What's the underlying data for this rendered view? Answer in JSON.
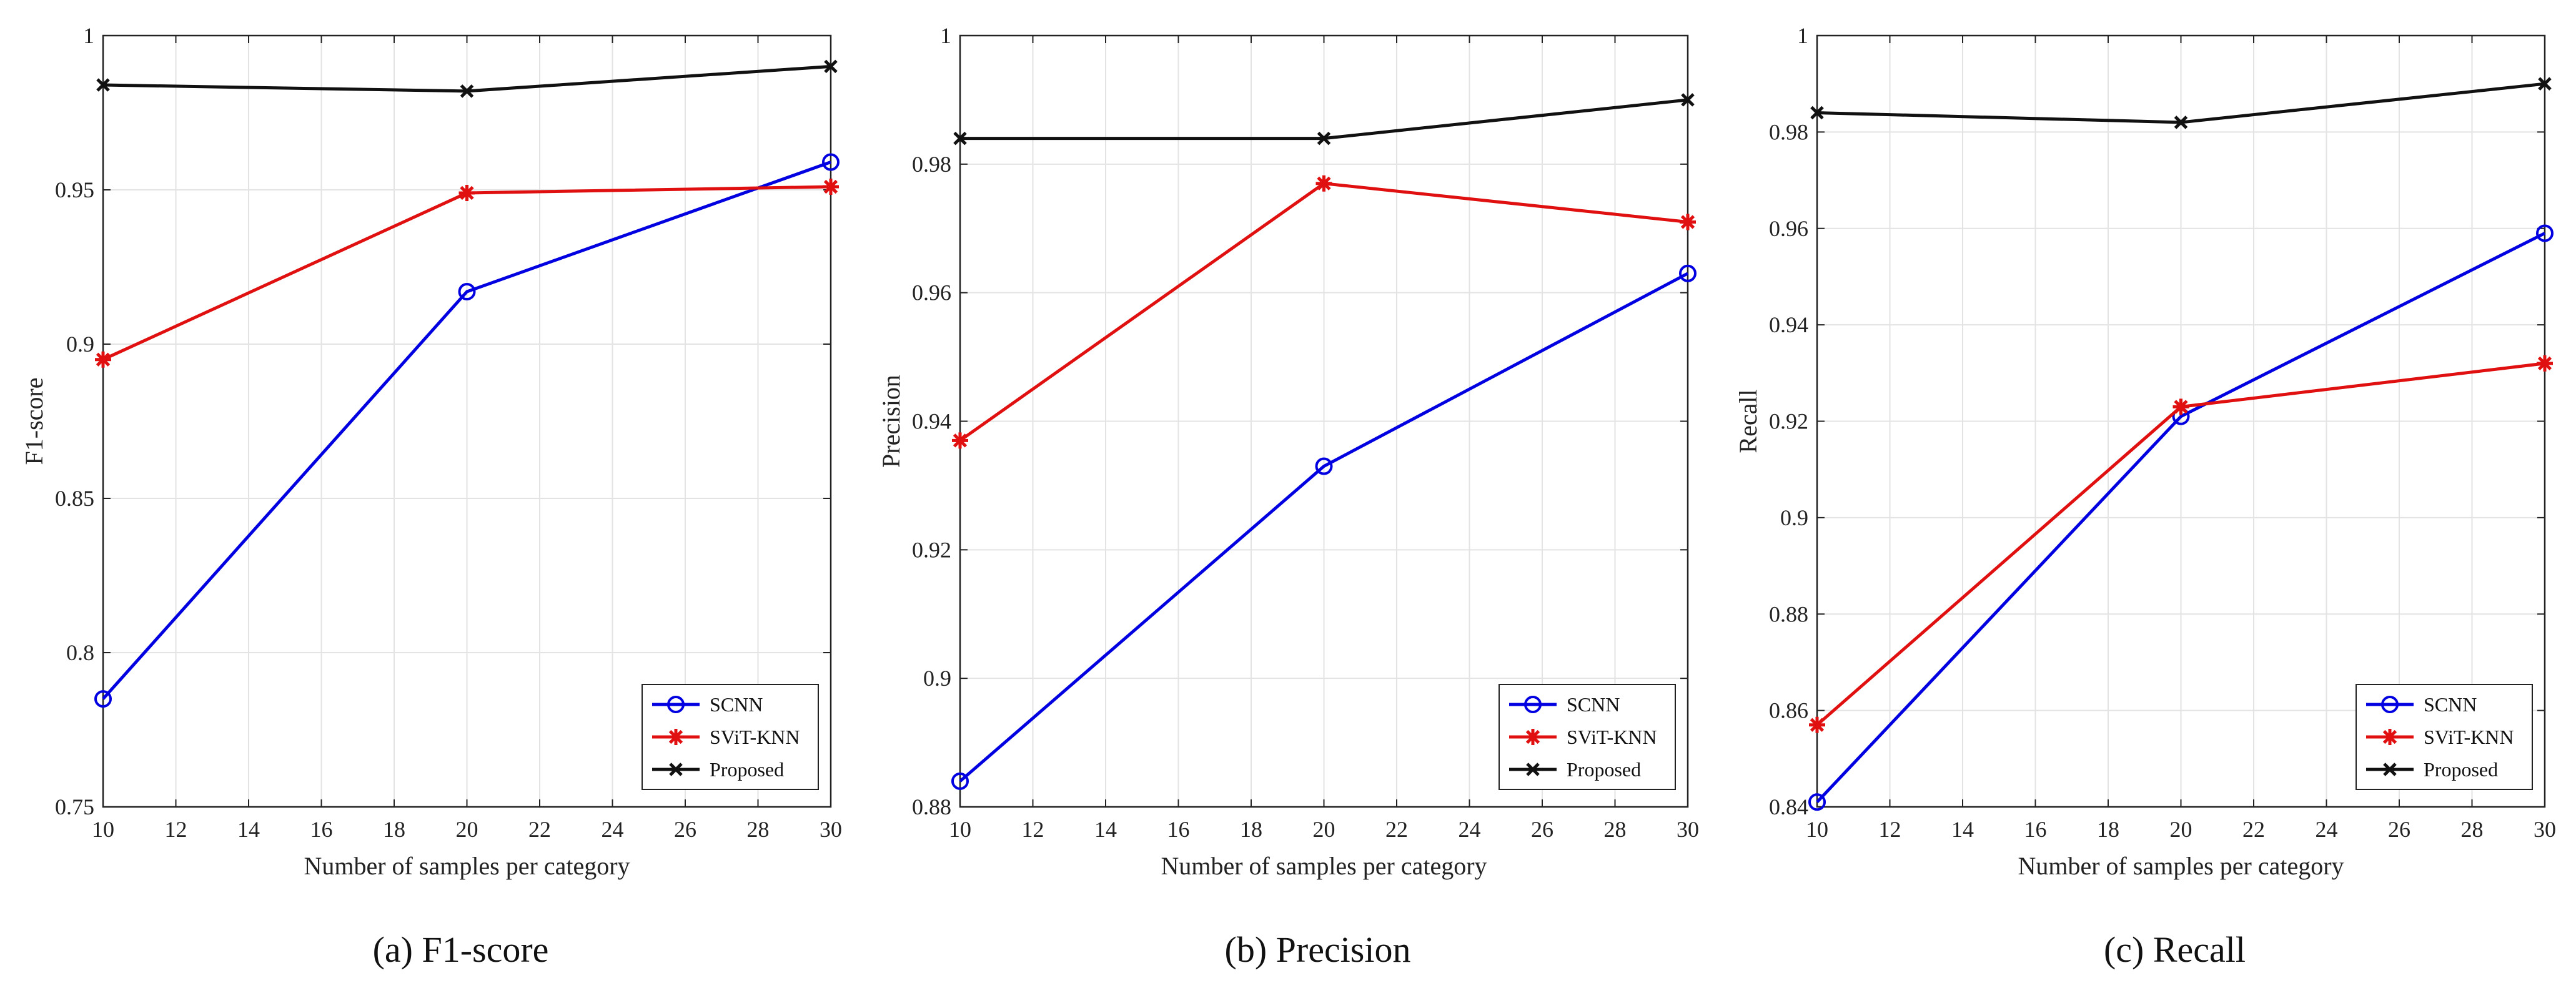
{
  "chart_data": [
    {
      "type": "line",
      "caption": "(a) F1-score",
      "xlabel": "Number of samples per category",
      "ylabel": "F1-score",
      "x": [
        10,
        20,
        30
      ],
      "xlim": [
        10,
        30
      ],
      "ylim": [
        0.75,
        1
      ],
      "xticks": [
        10,
        12,
        14,
        16,
        18,
        20,
        22,
        24,
        26,
        28,
        30
      ],
      "yticks": [
        0.75,
        0.8,
        0.85,
        0.9,
        0.95,
        1
      ],
      "ytick_labels": [
        "0.75",
        "0.8",
        "0.85",
        "0.9",
        "0.95",
        "1"
      ],
      "grid": true,
      "legend_position": "bottom-right",
      "series": [
        {
          "name": "SCNN",
          "color": "#0000e0",
          "marker": "circle",
          "values": [
            0.785,
            0.917,
            0.959
          ]
        },
        {
          "name": "SViT-KNN",
          "color": "#e01010",
          "marker": "star",
          "values": [
            0.895,
            0.949,
            0.951
          ]
        },
        {
          "name": "Proposed",
          "color": "#111111",
          "marker": "x",
          "values": [
            0.984,
            0.982,
            0.99
          ]
        }
      ]
    },
    {
      "type": "line",
      "caption": "(b) Precision",
      "xlabel": "Number of samples per category",
      "ylabel": "Precision",
      "x": [
        10,
        20,
        30
      ],
      "xlim": [
        10,
        30
      ],
      "ylim": [
        0.88,
        1
      ],
      "xticks": [
        10,
        12,
        14,
        16,
        18,
        20,
        22,
        24,
        26,
        28,
        30
      ],
      "yticks": [
        0.88,
        0.9,
        0.92,
        0.94,
        0.96,
        0.98,
        1
      ],
      "ytick_labels": [
        "0.88",
        "0.9",
        "0.92",
        "0.94",
        "0.96",
        "0.98",
        "1"
      ],
      "grid": true,
      "legend_position": "bottom-right",
      "series": [
        {
          "name": "SCNN",
          "color": "#0000e0",
          "marker": "circle",
          "values": [
            0.884,
            0.933,
            0.963
          ]
        },
        {
          "name": "SViT-KNN",
          "color": "#e01010",
          "marker": "star",
          "values": [
            0.937,
            0.977,
            0.971
          ]
        },
        {
          "name": "Proposed",
          "color": "#111111",
          "marker": "x",
          "values": [
            0.984,
            0.984,
            0.99
          ]
        }
      ]
    },
    {
      "type": "line",
      "caption": "(c) Recall",
      "xlabel": "Number of samples per category",
      "ylabel": "Recall",
      "x": [
        10,
        20,
        30
      ],
      "xlim": [
        10,
        30
      ],
      "ylim": [
        0.84,
        1
      ],
      "xticks": [
        10,
        12,
        14,
        16,
        18,
        20,
        22,
        24,
        26,
        28,
        30
      ],
      "yticks": [
        0.84,
        0.86,
        0.88,
        0.9,
        0.92,
        0.94,
        0.96,
        0.98,
        1
      ],
      "ytick_labels": [
        "0.84",
        "0.86",
        "0.88",
        "0.9",
        "0.92",
        "0.94",
        "0.96",
        "0.98",
        "1"
      ],
      "grid": true,
      "legend_position": "bottom-right",
      "series": [
        {
          "name": "SCNN",
          "color": "#0000e0",
          "marker": "circle",
          "values": [
            0.841,
            0.921,
            0.959
          ]
        },
        {
          "name": "SViT-KNN",
          "color": "#e01010",
          "marker": "star",
          "values": [
            0.857,
            0.923,
            0.932
          ]
        },
        {
          "name": "Proposed",
          "color": "#111111",
          "marker": "x",
          "values": [
            0.984,
            0.982,
            0.99
          ]
        }
      ]
    }
  ]
}
